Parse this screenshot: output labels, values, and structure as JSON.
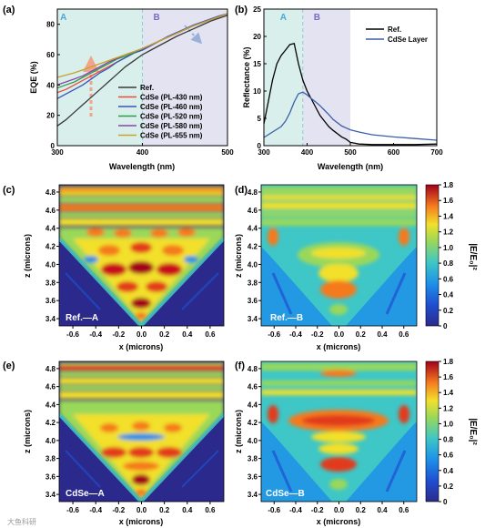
{
  "figure": {
    "panel_letters": [
      "(a)",
      "(b)",
      "(c)",
      "(d)",
      "(e)",
      "(f)"
    ],
    "watermark": "大鱼科研"
  },
  "chart_data": [
    {
      "type": "line",
      "panel": "(a)",
      "xlabel": "Wavelength (nm)",
      "ylabel": "EQE (%)",
      "xlim": [
        300,
        500
      ],
      "ylim": [
        0,
        90
      ],
      "xticks": [
        300,
        400,
        500
      ],
      "yticks": [
        0,
        20,
        40,
        60,
        80
      ],
      "regions": [
        {
          "label": "A",
          "from": 300,
          "to": 400,
          "color": "#d8efec"
        },
        {
          "label": "B",
          "from": 400,
          "to": 500,
          "color": "#e3e3f2"
        }
      ],
      "region_label_colors": {
        "A": "#4aa8d8",
        "B": "#7a6cc4"
      },
      "legend": "bottom-right",
      "series": [
        {
          "name": "Ref.",
          "color": "#3a3a3a",
          "x": [
            300,
            310,
            320,
            330,
            340,
            350,
            360,
            370,
            380,
            390,
            400,
            410,
            420,
            430,
            440,
            450,
            460,
            470,
            480,
            490,
            500
          ],
          "y": [
            13,
            17,
            22,
            27,
            32,
            37,
            42,
            47,
            52,
            56,
            60,
            63,
            66,
            69,
            72,
            74.5,
            77,
            79.5,
            82,
            84,
            86
          ]
        },
        {
          "name": "CdSe (PL-430 nm)",
          "color": "#e84b3c",
          "x": [
            300,
            310,
            320,
            330,
            340,
            350,
            360,
            370,
            380,
            390,
            400,
            410,
            420,
            430,
            440,
            450,
            460,
            470,
            480,
            490,
            500
          ],
          "y": [
            35,
            37,
            40,
            43,
            46,
            49,
            52,
            55,
            58,
            61,
            63,
            66,
            69,
            71.5,
            74,
            76.5,
            79,
            81,
            83,
            85,
            87
          ]
        },
        {
          "name": "CdSe (PL-460 nm)",
          "color": "#3a53b8",
          "x": [
            300,
            310,
            320,
            330,
            340,
            350,
            360,
            370,
            380,
            390,
            400,
            410,
            420,
            430,
            440,
            450,
            460,
            470,
            480,
            490,
            500
          ],
          "y": [
            31,
            34,
            37,
            40,
            44,
            48,
            51,
            55,
            58,
            61,
            63,
            66,
            69,
            72,
            74.5,
            77,
            79.5,
            81.5,
            83.5,
            85.5,
            87
          ]
        },
        {
          "name": "CdSe (PL-520 nm)",
          "color": "#2e9e4a",
          "x": [
            300,
            310,
            320,
            330,
            340,
            350,
            360,
            370,
            380,
            390,
            400,
            410,
            420,
            430,
            440,
            450,
            460,
            470,
            480,
            490,
            500
          ],
          "y": [
            38,
            40,
            42,
            45,
            48,
            51,
            54,
            57,
            59,
            61.5,
            64,
            66.5,
            69,
            71.5,
            74,
            76.5,
            79,
            81,
            83,
            85,
            87
          ]
        },
        {
          "name": "CdSe (PL-580 nm)",
          "color": "#8e44ad",
          "x": [
            300,
            310,
            320,
            330,
            340,
            350,
            360,
            370,
            380,
            390,
            400,
            410,
            420,
            430,
            440,
            450,
            460,
            470,
            480,
            490,
            500
          ],
          "y": [
            40,
            42,
            44,
            46,
            49,
            52,
            55,
            57.5,
            60,
            62,
            64,
            66.5,
            69,
            71.5,
            74,
            76.5,
            79,
            81,
            83,
            85,
            87
          ]
        },
        {
          "name": "CdSe (PL-655 nm)",
          "color": "#c9a227",
          "x": [
            300,
            310,
            320,
            330,
            340,
            350,
            360,
            370,
            380,
            390,
            400,
            410,
            420,
            430,
            440,
            450,
            460,
            470,
            480,
            490,
            500
          ],
          "y": [
            45,
            46.5,
            48,
            50,
            52,
            54,
            56,
            58,
            60,
            62,
            64,
            66.5,
            69,
            71.5,
            74,
            76.5,
            79,
            81,
            83,
            85,
            87
          ]
        }
      ]
    },
    {
      "type": "line",
      "panel": "(b)",
      "xlabel": "Wavelength (nm)",
      "ylabel": "Reflectance (%)",
      "xlim": [
        300,
        700
      ],
      "ylim": [
        0,
        25
      ],
      "xticks": [
        300,
        400,
        500,
        600,
        700
      ],
      "yticks": [
        0,
        5,
        10,
        15,
        20,
        25
      ],
      "regions": [
        {
          "label": "A",
          "from": 300,
          "to": 390,
          "color": "#d8efec"
        },
        {
          "label": "B",
          "from": 390,
          "to": 500,
          "color": "#e3e3f2"
        }
      ],
      "region_label_colors": {
        "A": "#4aa8d8",
        "B": "#7a6cc4"
      },
      "legend": "top-right",
      "series": [
        {
          "name": "Ref.",
          "color": "#000000",
          "x": [
            300,
            310,
            320,
            330,
            340,
            350,
            360,
            370,
            380,
            390,
            400,
            410,
            420,
            430,
            440,
            450,
            460,
            470,
            480,
            490,
            500,
            520,
            550,
            600,
            650,
            700
          ],
          "y": [
            4,
            8,
            12,
            15,
            16.5,
            17.5,
            18.5,
            18.7,
            15,
            12,
            10,
            8.5,
            7,
            5.5,
            4.5,
            3.5,
            2.8,
            2.2,
            1.6,
            1.2,
            0.6,
            0.3,
            0.2,
            0.2,
            0.2,
            0.3
          ]
        },
        {
          "name": "CdSe Layer",
          "color": "#3a5fa8",
          "x": [
            300,
            310,
            320,
            330,
            340,
            350,
            360,
            370,
            380,
            390,
            400,
            410,
            420,
            430,
            440,
            450,
            460,
            480,
            500,
            520,
            550,
            600,
            650,
            700
          ],
          "y": [
            1.5,
            2,
            2.5,
            3,
            3.5,
            4.5,
            6,
            8,
            9.5,
            9.8,
            9.3,
            8.6,
            8,
            7.3,
            6.5,
            5.7,
            4.8,
            3.6,
            2.9,
            2.5,
            2,
            1.6,
            1.3,
            1
          ]
        }
      ]
    },
    {
      "type": "heatmap",
      "panel": "(c)",
      "label": "Ref.—A",
      "xlabel": "x (microns)",
      "ylabel": "z (microns)",
      "xticks": [
        -0.6,
        -0.4,
        -0.2,
        0.0,
        0.2,
        0.4,
        0.6
      ],
      "yticks": [
        3.4,
        3.6,
        3.8,
        4.0,
        4.2,
        4.4,
        4.6,
        4.8
      ]
    },
    {
      "type": "heatmap",
      "panel": "(d)",
      "label": "Ref.—B",
      "xlabel": "x (microns)",
      "ylabel": "z (microns)",
      "xticks": [
        -0.6,
        -0.4,
        -0.2,
        0.0,
        0.2,
        0.4,
        0.6
      ],
      "yticks": [
        3.4,
        3.6,
        3.8,
        4.0,
        4.2,
        4.4,
        4.6,
        4.8
      ],
      "colorbar": {
        "label": "|E/E₀|²",
        "range": [
          0,
          1.8
        ],
        "ticks": [
          0,
          0.2,
          0.4,
          0.6,
          0.8,
          1.0,
          1.2,
          1.4,
          1.6,
          1.8
        ]
      }
    },
    {
      "type": "heatmap",
      "panel": "(e)",
      "label": "CdSe—A",
      "xlabel": "x (microns)",
      "ylabel": "z (microns)",
      "xticks": [
        -0.6,
        -0.4,
        -0.2,
        0.0,
        0.2,
        0.4,
        0.6
      ],
      "yticks": [
        3.4,
        3.6,
        3.8,
        4.0,
        4.2,
        4.4,
        4.6,
        4.8
      ]
    },
    {
      "type": "heatmap",
      "panel": "(f)",
      "label": "CdSe—B",
      "xlabel": "x (microns)",
      "ylabel": "z (microns)",
      "xticks": [
        -0.6,
        -0.4,
        -0.2,
        0.0,
        0.2,
        0.4,
        0.6
      ],
      "yticks": [
        3.4,
        3.6,
        3.8,
        4.0,
        4.2,
        4.4,
        4.6,
        4.8
      ],
      "colorbar": {
        "label": "|E/E₀|²",
        "range": [
          0,
          1.8
        ],
        "ticks": [
          0,
          0.2,
          0.4,
          0.6,
          0.8,
          1.0,
          1.2,
          1.4,
          1.6,
          1.8
        ]
      }
    }
  ]
}
